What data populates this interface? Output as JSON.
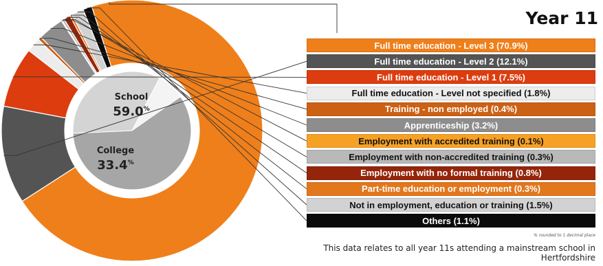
{
  "title": "Year 11",
  "colors": {
    "orange": "#ef7f1a",
    "dark_grey": "#545454",
    "red_orange": "#dd3c0f",
    "light": "#ececec",
    "brown_orange": "#cc6014",
    "grey": "#8d8d8d",
    "amber": "#f7a124",
    "silver": "#b9b9b9",
    "dark_red": "#95250a",
    "mid_orange": "#e2771c",
    "pale_grey": "#d2d2d2",
    "black": "#0b0b0b"
  },
  "chart_data": [
    {
      "type": "pie",
      "style": "donut",
      "title": "Year 11",
      "categories": [
        "Full time education - Level 3",
        "Full time education - Level 2",
        "Full time education - Level 1",
        "Full time education - Level not specified",
        "Training - non employed",
        "Apprenticeship",
        "Employment with accredited training",
        "Employment with non-accredited training",
        "Employment with no formal training",
        "Part-time education or employment",
        "Not in employment, education or training",
        "Others"
      ],
      "values": [
        70.9,
        12.1,
        7.5,
        1.8,
        0.4,
        3.2,
        0.1,
        0.3,
        0.8,
        0.3,
        1.5,
        1.1
      ],
      "labels": [
        "Full time education - Level 3 (70.9%)",
        "Full time education - Level 2 (12.1%)",
        "Full time education - Level 1 (7.5%)",
        "Full time education - Level not specified (1.8%)",
        "Training - non employed (0.4%)",
        "Apprenticeship (3.2%)",
        "Employment with accredited training (0.1%)",
        "Employment with non-accredited training (0.3%)",
        "Employment with no formal training (0.8%)",
        "Part-time education or employment (0.3%)",
        "Not in employment, education or training (1.5%)",
        "Others (1.1%)"
      ],
      "colors": [
        "#ef7f1a",
        "#545454",
        "#dd3c0f",
        "#ececec",
        "#cc6014",
        "#8d8d8d",
        "#f7a124",
        "#b9b9b9",
        "#95250a",
        "#e2771c",
        "#d2d2d2",
        "#0b0b0b"
      ],
      "text_colors": [
        "#ffffff",
        "#ffffff",
        "#ffffff",
        "#111111",
        "#ffffff",
        "#ffffff",
        "#111111",
        "#111111",
        "#ffffff",
        "#ffffff",
        "#111111",
        "#ffffff"
      ],
      "legend_position": "right"
    },
    {
      "type": "pie",
      "categories": [
        "School",
        "College"
      ],
      "values": [
        59.0,
        33.4
      ],
      "value_labels": [
        "59.0",
        "33.4"
      ],
      "unit": "%",
      "colors": [
        "#a6a6a6",
        "#d4d4d4"
      ],
      "remainder_color": "#f4f4f4"
    }
  ],
  "footnote": "% rounded to 1 decimal place",
  "caption": "This data relates to all year 11s attending a mainstream school in Hertfordshire"
}
